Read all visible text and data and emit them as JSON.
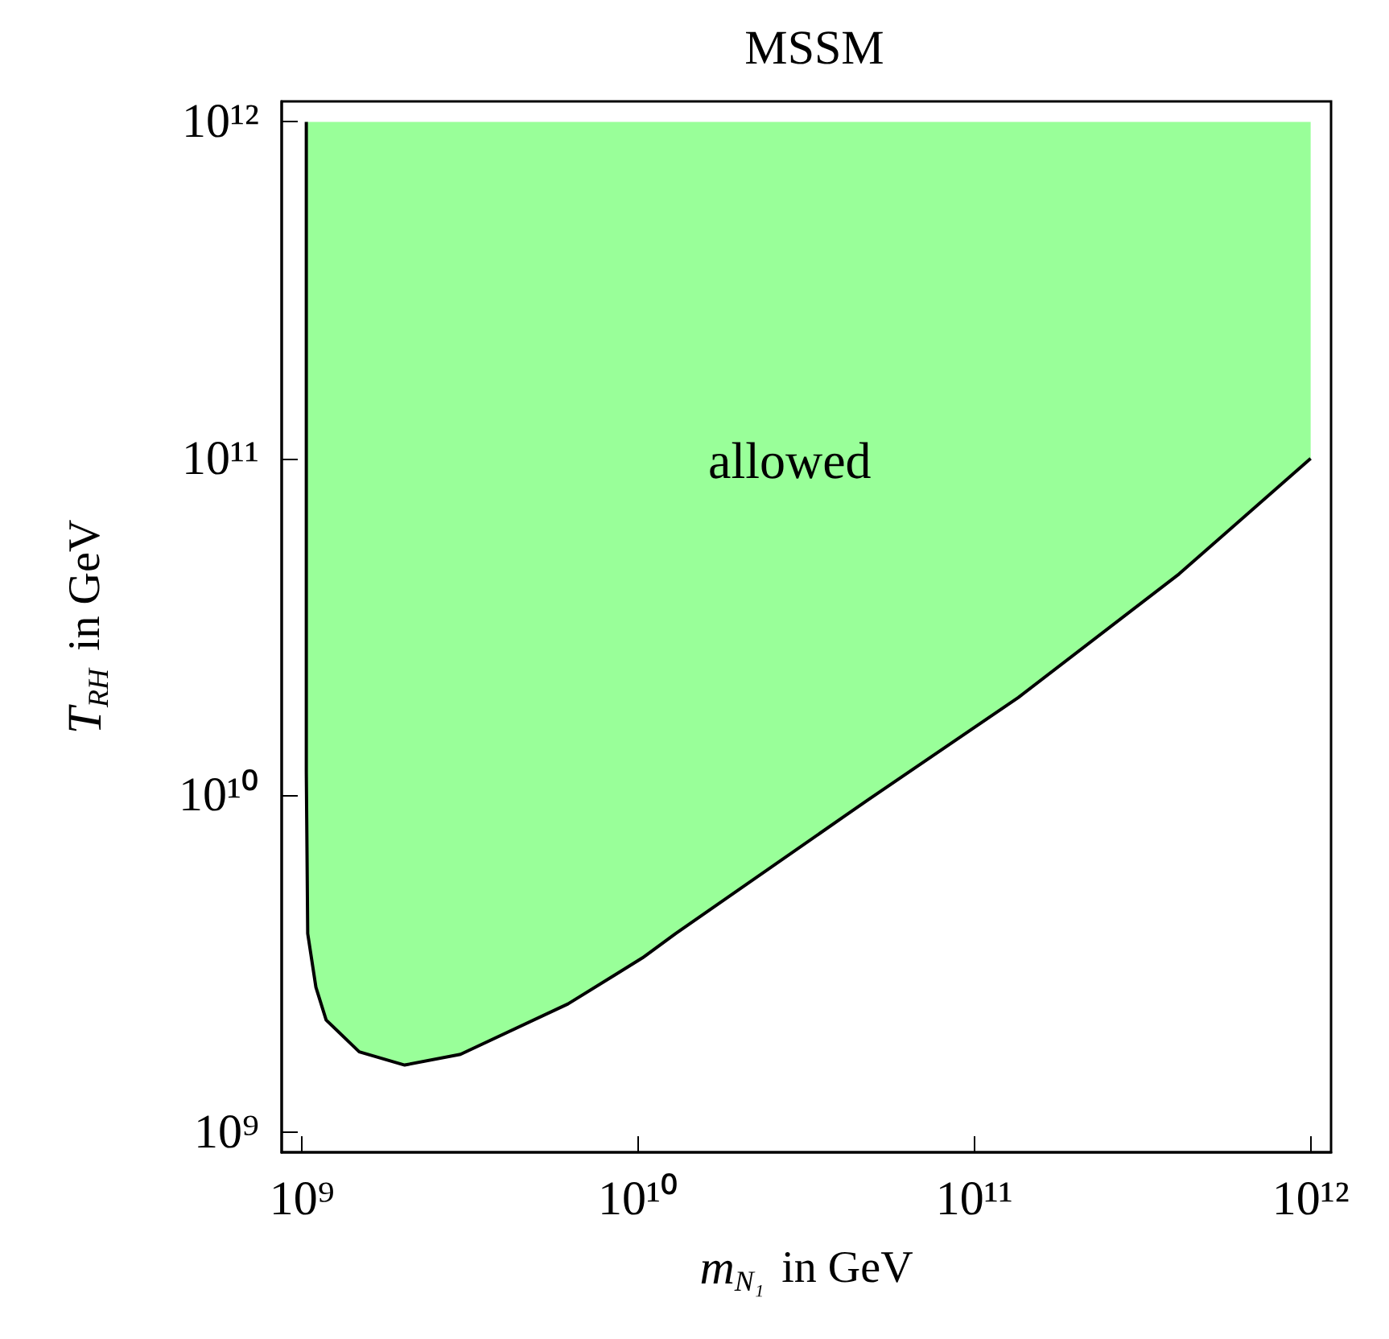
{
  "chart_data": {
    "type": "line",
    "title": "MSSM",
    "xlabel": "m$_{N₁}$ in GeV",
    "ylabel": "T$_{RH}$ in GeV",
    "annotations": [
      "allowed"
    ],
    "x": [
      1030000000.0,
      1030000000.0,
      1040000000.0,
      1100000000.0,
      1180000000.0,
      1480000000.0,
      2020000000.0,
      2960000000.0,
      6180000000.0,
      10300000000.0,
      12900000000.0,
      48300000000.0,
      135000000000.0,
      406000000000.0,
      1000000000000.0
    ],
    "series": [
      {
        "color": "#000000",
        "values": [
          1000000000000.0,
          11700000000.0,
          3880000000.0,
          2690000000.0,
          2150000000.0,
          1730000000.0,
          1580000000.0,
          1700000000.0,
          2400000000.0,
          3290000000.0,
          3880000000.0,
          9700000000.0,
          19500000000.0,
          45400000000.0,
          100000000000.0
        ],
        "lower": [
          null,
          11700000000.0,
          3880000000.0,
          2690000000.0,
          2150000000.0,
          1730000000.0,
          1580000000.0,
          1700000000.0,
          2400000000.0,
          3290000000.0,
          3880000000.0,
          9700000000.0,
          19500000000.0,
          45400000000.0,
          100000000000.0
        ],
        "upper": [
          null,
          1000000000000.0,
          1000000000000.0,
          1000000000000.0,
          1000000000000.0,
          1000000000000.0,
          1000000000000.0,
          1000000000000.0,
          1000000000000.0,
          1000000000000.0,
          1000000000000.0,
          1000000000000.0,
          1000000000000.0,
          1000000000000.0,
          1000000000000.0
        ]
      }
    ],
    "log": "xy",
    "marker": "none",
    "line_style": "solid",
    "xlim": [
      870000000.0,
      1150000000000.0
    ],
    "ylim": [
      870000000.0,
      1150000000000.0
    ],
    "xticks": [
      {
        "value": 1000000000.0,
        "label": "10⁹"
      },
      {
        "value": 10000000000.0,
        "label": "10¹⁰"
      },
      {
        "value": 100000000000.0,
        "label": "10¹¹"
      },
      {
        "value": 1000000000000.0,
        "label": "10¹²"
      }
    ],
    "yticks": [
      {
        "value": 1000000000.0,
        "label": "10⁹"
      },
      {
        "value": 10000000000.0,
        "label": "10¹⁰"
      },
      {
        "value": 100000000000.0,
        "label": "10¹¹"
      },
      {
        "value": 1000000000000.0,
        "label": "10¹²"
      }
    ]
  }
}
